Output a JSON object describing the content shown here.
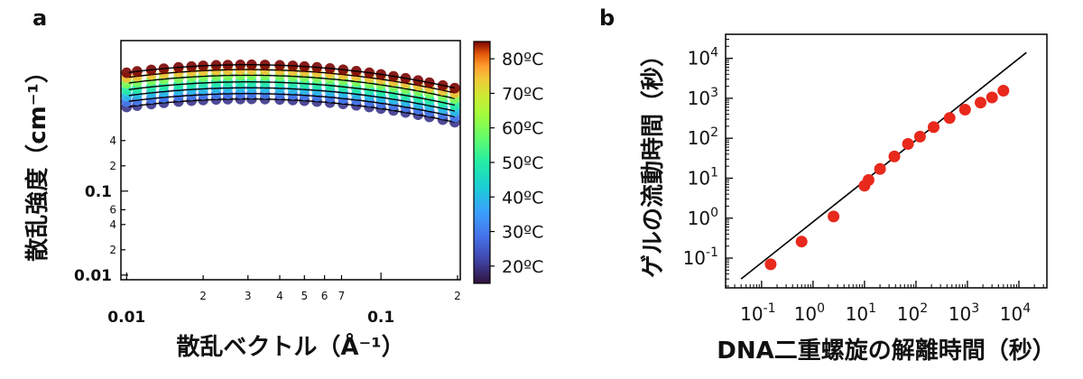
{
  "panel_labels": [
    "a",
    "b"
  ],
  "chart_data": [
    {
      "panel": "a",
      "type": "scatter",
      "xlabel": "散乱ベクトル（Å⁻¹）",
      "ylabel": "散乱強度（cm⁻¹）",
      "xscale": "log",
      "yscale": "log",
      "xlim": [
        0.0095,
        0.205
      ],
      "ylim": [
        0.0088,
        6.2
      ],
      "x_tick_labels": [
        {
          "v": 0.01,
          "t": "0.01",
          "major": true
        },
        {
          "v": 0.02,
          "t": "2"
        },
        {
          "v": 0.03,
          "t": "3"
        },
        {
          "v": 0.04,
          "t": "4"
        },
        {
          "v": 0.05,
          "t": "5"
        },
        {
          "v": 0.06,
          "t": "6"
        },
        {
          "v": 0.07,
          "t": "7"
        },
        {
          "v": 0.1,
          "t": "0.1",
          "major": true
        },
        {
          "v": 0.2,
          "t": "2"
        }
      ],
      "y_tick_labels": [
        {
          "v": 0.01,
          "t": "0.01",
          "major": true
        },
        {
          "v": 0.02,
          "t": "2"
        },
        {
          "v": 0.04,
          "t": "4"
        },
        {
          "v": 0.06,
          "t": "6"
        },
        {
          "v": 0.1,
          "t": "0.1",
          "major": true
        },
        {
          "v": 0.2,
          "t": "2"
        },
        {
          "v": 0.4,
          "t": "4"
        }
      ],
      "colorbar": {
        "range": [
          15,
          85
        ],
        "ticks": [
          {
            "v": 20,
            "t": "20ºC"
          },
          {
            "v": 30,
            "t": "30ºC"
          },
          {
            "v": 40,
            "t": "40ºC"
          },
          {
            "v": 50,
            "t": "50ºC"
          },
          {
            "v": 60,
            "t": "60ºC"
          },
          {
            "v": 70,
            "t": "70ºC"
          },
          {
            "v": 80,
            "t": "80ºC"
          }
        ]
      },
      "series": [
        {
          "temp": 20,
          "peak": 1.25
        },
        {
          "temp": 30,
          "peak": 1.45
        },
        {
          "temp": 40,
          "peak": 1.7
        },
        {
          "temp": 50,
          "peak": 2.0
        },
        {
          "temp": 60,
          "peak": 2.4
        },
        {
          "temp": 75,
          "peak": 2.8
        },
        {
          "temp": 85,
          "peak": 3.2
        }
      ],
      "q": [
        0.01,
        0.011,
        0.0125,
        0.014,
        0.016,
        0.018,
        0.02,
        0.0225,
        0.025,
        0.028,
        0.031,
        0.035,
        0.04,
        0.045,
        0.05,
        0.056,
        0.063,
        0.071,
        0.08,
        0.09,
        0.1,
        0.112,
        0.125,
        0.14,
        0.155,
        0.175,
        0.195
      ],
      "grid": false
    },
    {
      "panel": "b",
      "type": "scatter",
      "xlabel": "DNA二重螺旋の解離時間（秒）",
      "ylabel": "ゲルの流動時間（秒）",
      "xscale": "log",
      "yscale": "log",
      "xlim": [
        0.02,
        35000
      ],
      "ylim": [
        0.018,
        40000
      ],
      "x_ticks": [
        {
          "v": 0.1,
          "base": "10",
          "exp": "-1"
        },
        {
          "v": 1,
          "base": "10",
          "exp": "0"
        },
        {
          "v": 10,
          "base": "10",
          "exp": "1"
        },
        {
          "v": 100,
          "base": "10",
          "exp": "2"
        },
        {
          "v": 1000,
          "base": "10",
          "exp": "3"
        },
        {
          "v": 10000,
          "base": "10",
          "exp": "4"
        }
      ],
      "y_ticks": [
        {
          "v": 0.1,
          "base": "10",
          "exp": "-1"
        },
        {
          "v": 1,
          "base": "10",
          "exp": "0"
        },
        {
          "v": 10,
          "base": "10",
          "exp": "1"
        },
        {
          "v": 100,
          "base": "10",
          "exp": "2"
        },
        {
          "v": 1000,
          "base": "10",
          "exp": "3"
        },
        {
          "v": 10000,
          "base": "10",
          "exp": "4"
        }
      ],
      "points": [
        {
          "x": 0.15,
          "y": 0.07
        },
        {
          "x": 0.6,
          "y": 0.26
        },
        {
          "x": 2.5,
          "y": 1.1
        },
        {
          "x": 10,
          "y": 6.5
        },
        {
          "x": 12,
          "y": 9
        },
        {
          "x": 20,
          "y": 17
        },
        {
          "x": 38,
          "y": 35
        },
        {
          "x": 70,
          "y": 72
        },
        {
          "x": 120,
          "y": 110
        },
        {
          "x": 220,
          "y": 190
        },
        {
          "x": 450,
          "y": 320
        },
        {
          "x": 900,
          "y": 520
        },
        {
          "x": 1800,
          "y": 780
        },
        {
          "x": 3000,
          "y": 1050
        },
        {
          "x": 5000,
          "y": 1550
        }
      ],
      "line": [
        {
          "x": 0.04,
          "y": 0.03
        },
        {
          "x": 14000,
          "y": 14000
        }
      ],
      "point_color": "#e8291c",
      "grid": false
    }
  ]
}
